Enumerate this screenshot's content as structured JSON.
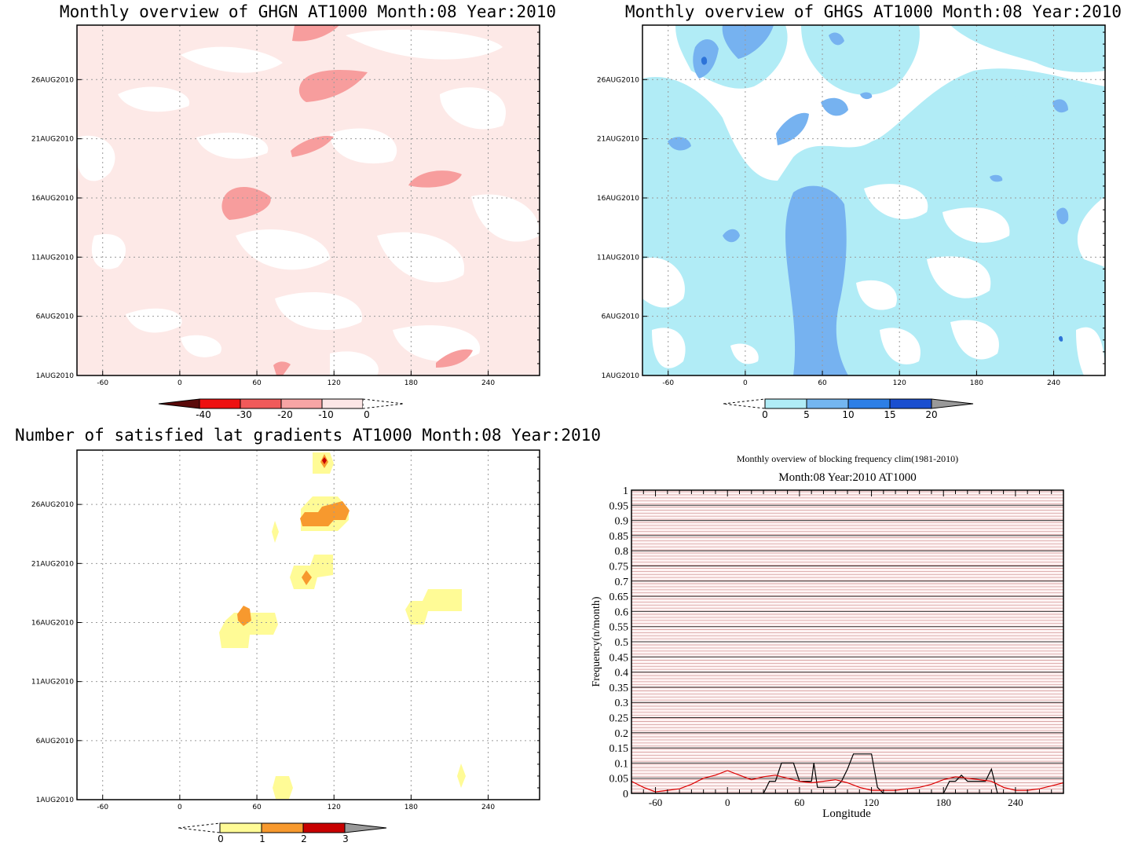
{
  "titles": {
    "p1": "Monthly overview of GHGN AT1000 Month:08 Year:2010",
    "p2": "Monthly overview of GHGS AT1000 Month:08 Year:2010",
    "p3": "Number of satisfied lat gradients AT1000 Month:08 Year:2010",
    "p4_super": "Monthly overview of blocking frequency clim(1981-2010)",
    "p4": "Month:08 Year:2010  AT1000"
  },
  "lon_ticks": [
    "-60",
    "0",
    "60",
    "120",
    "180",
    "240"
  ],
  "lon_tick_values": [
    -60,
    0,
    60,
    120,
    180,
    240
  ],
  "date_ticks": [
    "1AUG2010",
    "6AUG2010",
    "11AUG2010",
    "16AUG2010",
    "21AUG2010",
    "26AUG2010"
  ],
  "colorbars": {
    "ghgn": {
      "labels": [
        "-40",
        "-30",
        "-20",
        "-10",
        "0"
      ],
      "colors": [
        "#5a0a0a",
        "#ee1111",
        "#f05a5a",
        "#f7a5a5",
        "#fce6e6",
        "#ffffff"
      ]
    },
    "ghgs": {
      "labels": [
        "0",
        "5",
        "10",
        "15",
        "20"
      ],
      "colors": [
        "#ffffff",
        "#b0ecf6",
        "#74b6f0",
        "#2d7fe6",
        "#1a4fd0",
        "#999999"
      ]
    },
    "lat": {
      "labels": [
        "0",
        "1",
        "2",
        "3"
      ],
      "colors": [
        "#ffffff",
        "#fffb96",
        "#f7992e",
        "#c80000",
        "#999999"
      ]
    }
  },
  "fields": {
    "ghgn_background": "#fde9e7",
    "ghgn_blob": "#f79d9d",
    "ghgs_background": "#ffffff",
    "ghgs_light": "#b1ecf6",
    "ghgs_mid": "#76b2f0",
    "ghgs_dark": "#2d73d8",
    "lat_one": "#fffb96",
    "lat_two": "#f7992e",
    "lat_three": "#c80000"
  },
  "chart_data": {
    "type": "line",
    "title": "Month:08 Year:2010  AT1000",
    "supertitle": "Monthly overview of blocking frequency clim(1981-2010)",
    "xlabel": "Longitude",
    "ylabel": "Frequency(n/month)",
    "xlim": [
      -80,
      280
    ],
    "ylim": [
      0,
      1
    ],
    "x_ticks": [
      -60,
      0,
      60,
      120,
      180,
      240
    ],
    "y_ticks": [
      "0",
      "0.05",
      "0.1",
      "0.15",
      "0.2",
      "0.25",
      "0.3",
      "0.35",
      "0.4",
      "0.45",
      "0.5",
      "0.55",
      "0.6",
      "0.65",
      "0.7",
      "0.75",
      "0.8",
      "0.85",
      "0.9",
      "0.95",
      "1"
    ],
    "series": [
      {
        "color": "#000000",
        "x": [
          30,
          35,
          40,
          45,
          50,
          55,
          60,
          65,
          70,
          72,
          75,
          80,
          85,
          90,
          95,
          100,
          105,
          110,
          115,
          120,
          125,
          130,
          180,
          185,
          190,
          195,
          200,
          205,
          210,
          215,
          220,
          225
        ],
        "y": [
          0,
          0.04,
          0.04,
          0.1,
          0.1,
          0.1,
          0.04,
          0.04,
          0.04,
          0.1,
          0.02,
          0.02,
          0.02,
          0.02,
          0.04,
          0.08,
          0.13,
          0.13,
          0.13,
          0.13,
          0.02,
          0,
          0,
          0.04,
          0.04,
          0.06,
          0.04,
          0.04,
          0.04,
          0.04,
          0.08,
          0
        ]
      },
      {
        "color": "#dd0000",
        "x": [
          -80,
          -70,
          -60,
          -50,
          -40,
          -30,
          -20,
          -10,
          0,
          10,
          20,
          30,
          40,
          50,
          60,
          70,
          80,
          90,
          100,
          110,
          120,
          130,
          140,
          150,
          160,
          170,
          180,
          190,
          200,
          210,
          220,
          230,
          240,
          250,
          260,
          270,
          280
        ],
        "y": [
          0.04,
          0.02,
          0.005,
          0.01,
          0.015,
          0.03,
          0.05,
          0.06,
          0.075,
          0.06,
          0.045,
          0.055,
          0.06,
          0.05,
          0.04,
          0.035,
          0.04,
          0.045,
          0.035,
          0.02,
          0.01,
          0.01,
          0.01,
          0.015,
          0.02,
          0.03,
          0.045,
          0.055,
          0.05,
          0.045,
          0.04,
          0.02,
          0.01,
          0.01,
          0.015,
          0.025,
          0.035
        ]
      }
    ]
  }
}
